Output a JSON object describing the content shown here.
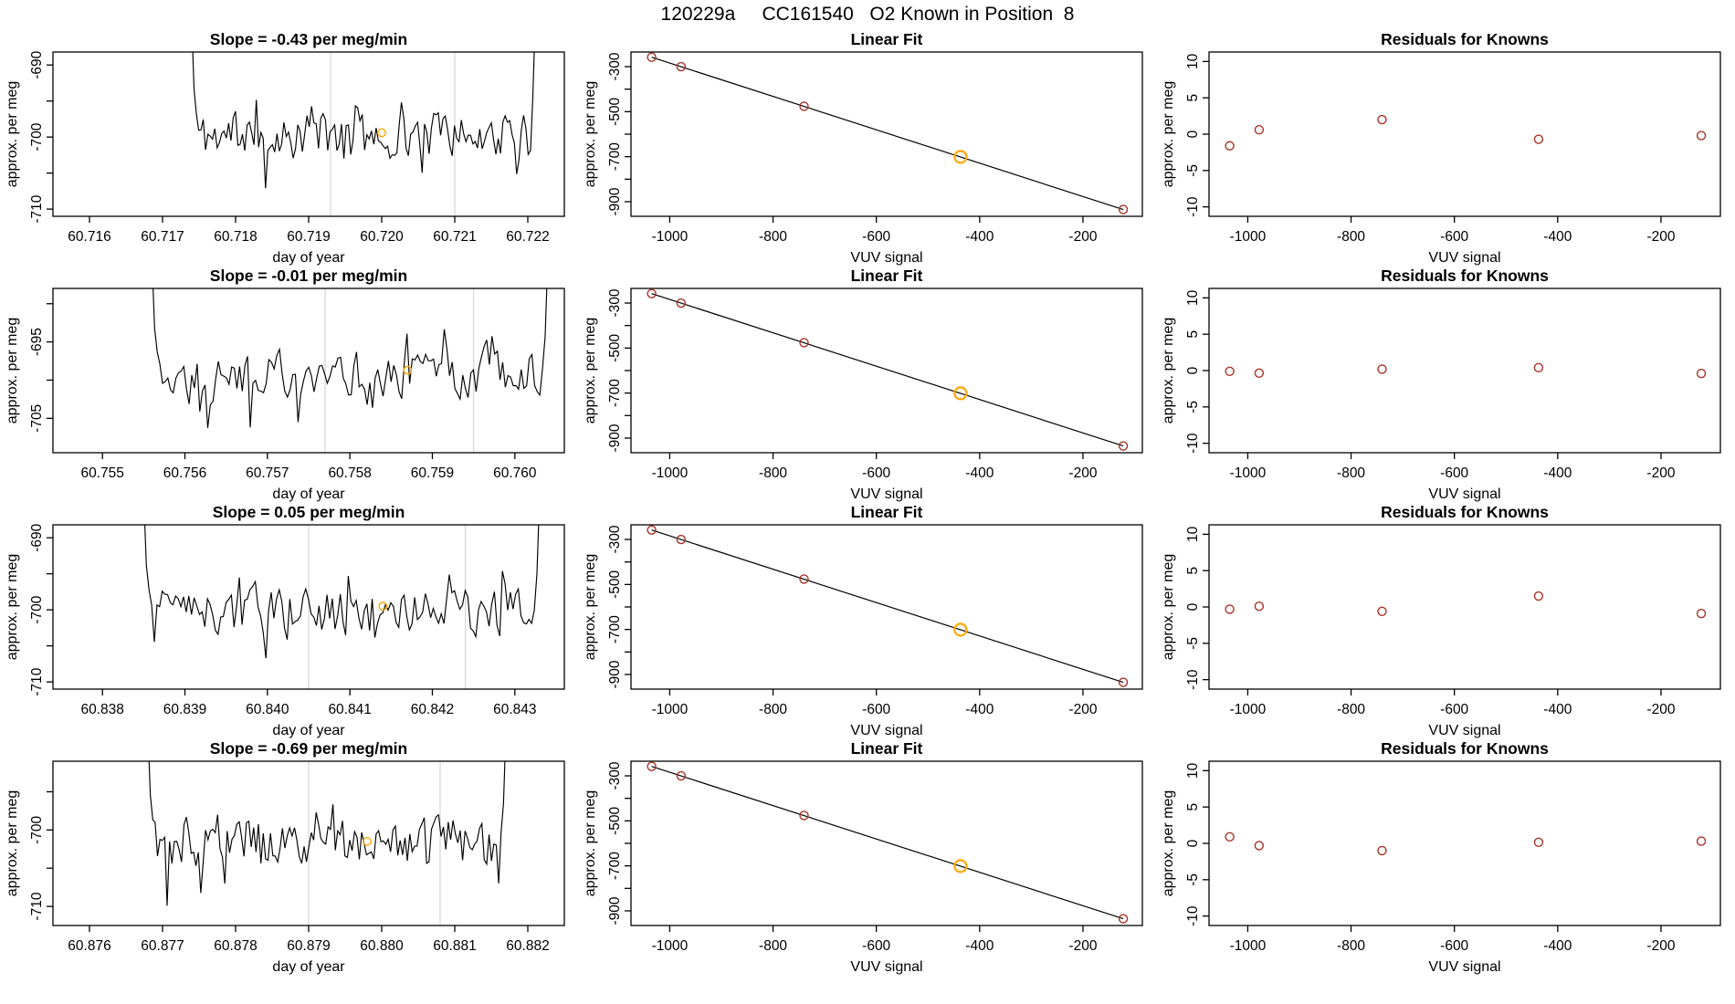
{
  "page_title": "120229a     CC161540   O2 Known in Position  8",
  "colors": {
    "series_line": "#000000",
    "axis": "#000000",
    "known_point": "#a93226",
    "highlight_point": "#ffa500",
    "guide_line": "#d8d8d8",
    "background": "#ffffff"
  },
  "chart_data": [
    {
      "type": "line",
      "panel": "timeseries",
      "title": "Slope =  -0.43  per meg/min",
      "xlabel": "day of year",
      "ylabel": "approx. per meg",
      "xlim": [
        60.7155,
        60.7225
      ],
      "ylim": [
        -711,
        -688.2
      ],
      "xticks": [
        {
          "v": 60.716,
          "l": "60.716"
        },
        {
          "v": 60.717,
          "l": "60.717"
        },
        {
          "v": 60.718,
          "l": "60.718"
        },
        {
          "v": 60.719,
          "l": "60.719"
        },
        {
          "v": 60.72,
          "l": "60.720"
        },
        {
          "v": 60.721,
          "l": "60.721"
        },
        {
          "v": 60.722,
          "l": "60.722"
        }
      ],
      "yticks": [
        {
          "v": -690,
          "l": "-690"
        },
        {
          "v": -695,
          "l": ""
        },
        {
          "v": -700,
          "l": "-700"
        },
        {
          "v": -705,
          "l": ""
        },
        {
          "v": -710,
          "l": "-710"
        }
      ],
      "vlines": [
        60.7193,
        60.721
      ],
      "highlight_point": {
        "x": 60.72,
        "y": -699.4
      },
      "noise": {
        "seed": 11,
        "n": 150,
        "mean": -699.8,
        "amp": 2.8,
        "start": 60.7174,
        "end": 60.7221
      }
    },
    {
      "type": "scatter",
      "panel": "linear_fit",
      "title": "Linear Fit",
      "xlabel": "VUV signal",
      "ylabel": "approx. per meg",
      "xlim": [
        -1075,
        -85
      ],
      "ylim": [
        -965,
        -235
      ],
      "xticks": [
        {
          "v": -1000,
          "l": "-1000"
        },
        {
          "v": -800,
          "l": "-800"
        },
        {
          "v": -600,
          "l": "-600"
        },
        {
          "v": -400,
          "l": "-400"
        },
        {
          "v": -200,
          "l": "-200"
        }
      ],
      "yticks": [
        {
          "v": -300,
          "l": "-300"
        },
        {
          "v": -400,
          "l": ""
        },
        {
          "v": -500,
          "l": "-500"
        },
        {
          "v": -600,
          "l": ""
        },
        {
          "v": -700,
          "l": "-700"
        },
        {
          "v": -800,
          "l": ""
        },
        {
          "v": -900,
          "l": "-900"
        }
      ],
      "points": [
        {
          "x": -1035,
          "y": -258
        },
        {
          "x": -978,
          "y": -300
        },
        {
          "x": -740,
          "y": -476
        },
        {
          "x": -437,
          "y": -701
        },
        {
          "x": -122,
          "y": -935
        }
      ],
      "highlight_index": 3,
      "fit_line": true
    },
    {
      "type": "scatter",
      "panel": "residuals",
      "title": "Residuals for Knowns",
      "xlabel": "VUV signal",
      "ylabel": "approx. per meg",
      "xlim": [
        -1075,
        -85
      ],
      "ylim": [
        -11.3,
        11.3
      ],
      "xticks": [
        {
          "v": -1000,
          "l": "-1000"
        },
        {
          "v": -800,
          "l": "-800"
        },
        {
          "v": -600,
          "l": "-600"
        },
        {
          "v": -400,
          "l": "-400"
        },
        {
          "v": -200,
          "l": "-200"
        }
      ],
      "yticks": [
        {
          "v": 10,
          "l": "10"
        },
        {
          "v": 5,
          "l": "5"
        },
        {
          "v": 0,
          "l": "0"
        },
        {
          "v": -5,
          "l": "-5"
        },
        {
          "v": -10,
          "l": "-10"
        }
      ],
      "points": [
        {
          "x": -1035,
          "y": -1.6
        },
        {
          "x": -978,
          "y": 0.6
        },
        {
          "x": -740,
          "y": 2.0
        },
        {
          "x": -437,
          "y": -0.7
        },
        {
          "x": -122,
          "y": -0.2
        }
      ],
      "fit_line": false
    },
    {
      "type": "line",
      "panel": "timeseries",
      "title": "Slope =  -0.01  per meg/min",
      "xlabel": "day of year",
      "ylabel": "approx. per meg",
      "xlim": [
        60.7544,
        60.7606
      ],
      "ylim": [
        -709.5,
        -688
      ],
      "xticks": [
        {
          "v": 60.755,
          "l": "60.755"
        },
        {
          "v": 60.756,
          "l": "60.756"
        },
        {
          "v": 60.757,
          "l": "60.757"
        },
        {
          "v": 60.758,
          "l": "60.758"
        },
        {
          "v": 60.759,
          "l": "60.759"
        },
        {
          "v": 60.76,
          "l": "60.760"
        }
      ],
      "yticks": [
        {
          "v": -690,
          "l": ""
        },
        {
          "v": -695,
          "l": "-695"
        },
        {
          "v": -700,
          "l": ""
        },
        {
          "v": -705,
          "l": "-705"
        }
      ],
      "vlines": [
        60.7577,
        60.7595
      ],
      "highlight_point": {
        "x": 60.7587,
        "y": -698.7
      },
      "noise": {
        "seed": 22,
        "n": 150,
        "mean": -699.2,
        "amp": 2.6,
        "start": 60.7556,
        "end": 60.7604
      }
    },
    {
      "type": "scatter",
      "panel": "linear_fit",
      "title": "Linear Fit",
      "xlabel": "VUV signal",
      "ylabel": "approx. per meg",
      "xlim": [
        -1075,
        -85
      ],
      "ylim": [
        -965,
        -235
      ],
      "xticks": [
        {
          "v": -1000,
          "l": "-1000"
        },
        {
          "v": -800,
          "l": "-800"
        },
        {
          "v": -600,
          "l": "-600"
        },
        {
          "v": -400,
          "l": "-400"
        },
        {
          "v": -200,
          "l": "-200"
        }
      ],
      "yticks": [
        {
          "v": -300,
          "l": "-300"
        },
        {
          "v": -400,
          "l": ""
        },
        {
          "v": -500,
          "l": "-500"
        },
        {
          "v": -600,
          "l": ""
        },
        {
          "v": -700,
          "l": "-700"
        },
        {
          "v": -800,
          "l": ""
        },
        {
          "v": -900,
          "l": "-900"
        }
      ],
      "points": [
        {
          "x": -1035,
          "y": -258
        },
        {
          "x": -978,
          "y": -300
        },
        {
          "x": -740,
          "y": -476
        },
        {
          "x": -437,
          "y": -701
        },
        {
          "x": -122,
          "y": -935
        }
      ],
      "highlight_index": 3,
      "fit_line": true
    },
    {
      "type": "scatter",
      "panel": "residuals",
      "title": "Residuals for Knowns",
      "xlabel": "VUV signal",
      "ylabel": "approx. per meg",
      "xlim": [
        -1075,
        -85
      ],
      "ylim": [
        -11.3,
        11.3
      ],
      "xticks": [
        {
          "v": -1000,
          "l": "-1000"
        },
        {
          "v": -800,
          "l": "-800"
        },
        {
          "v": -600,
          "l": "-600"
        },
        {
          "v": -400,
          "l": "-400"
        },
        {
          "v": -200,
          "l": "-200"
        }
      ],
      "yticks": [
        {
          "v": 10,
          "l": "10"
        },
        {
          "v": 5,
          "l": "5"
        },
        {
          "v": 0,
          "l": "0"
        },
        {
          "v": -5,
          "l": "-5"
        },
        {
          "v": -10,
          "l": "-10"
        }
      ],
      "points": [
        {
          "x": -1035,
          "y": -0.1
        },
        {
          "x": -978,
          "y": -0.35
        },
        {
          "x": -740,
          "y": 0.2
        },
        {
          "x": -437,
          "y": 0.4
        },
        {
          "x": -122,
          "y": -0.4
        }
      ],
      "fit_line": false
    },
    {
      "type": "line",
      "panel": "timeseries",
      "title": "Slope =  0.05  per meg/min",
      "xlabel": "day of year",
      "ylabel": "approx. per meg",
      "xlim": [
        60.8374,
        60.8436
      ],
      "ylim": [
        -711,
        -688.2
      ],
      "xticks": [
        {
          "v": 60.838,
          "l": "60.838"
        },
        {
          "v": 60.839,
          "l": "60.839"
        },
        {
          "v": 60.84,
          "l": "60.840"
        },
        {
          "v": 60.841,
          "l": "60.841"
        },
        {
          "v": 60.842,
          "l": "60.842"
        },
        {
          "v": 60.843,
          "l": "60.843"
        }
      ],
      "yticks": [
        {
          "v": -690,
          "l": "-690"
        },
        {
          "v": -695,
          "l": ""
        },
        {
          "v": -700,
          "l": "-700"
        },
        {
          "v": -705,
          "l": ""
        },
        {
          "v": -710,
          "l": "-710"
        }
      ],
      "vlines": [
        60.8405,
        60.8424
      ],
      "highlight_point": {
        "x": 60.8414,
        "y": -699.5
      },
      "noise": {
        "seed": 33,
        "n": 150,
        "mean": -700.3,
        "amp": 2.8,
        "start": 60.8385,
        "end": 60.8433
      }
    },
    {
      "type": "scatter",
      "panel": "linear_fit",
      "title": "Linear Fit",
      "xlabel": "VUV signal",
      "ylabel": "approx. per meg",
      "xlim": [
        -1075,
        -85
      ],
      "ylim": [
        -965,
        -235
      ],
      "xticks": [
        {
          "v": -1000,
          "l": "-1000"
        },
        {
          "v": -800,
          "l": "-800"
        },
        {
          "v": -600,
          "l": "-600"
        },
        {
          "v": -400,
          "l": "-400"
        },
        {
          "v": -200,
          "l": "-200"
        }
      ],
      "yticks": [
        {
          "v": -300,
          "l": "-300"
        },
        {
          "v": -400,
          "l": ""
        },
        {
          "v": -500,
          "l": "-500"
        },
        {
          "v": -600,
          "l": ""
        },
        {
          "v": -700,
          "l": "-700"
        },
        {
          "v": -800,
          "l": ""
        },
        {
          "v": -900,
          "l": "-900"
        }
      ],
      "points": [
        {
          "x": -1035,
          "y": -258
        },
        {
          "x": -978,
          "y": -300
        },
        {
          "x": -740,
          "y": -476
        },
        {
          "x": -437,
          "y": -701
        },
        {
          "x": -122,
          "y": -935
        }
      ],
      "highlight_index": 3,
      "fit_line": true
    },
    {
      "type": "scatter",
      "panel": "residuals",
      "title": "Residuals for Knowns",
      "xlabel": "VUV signal",
      "ylabel": "approx. per meg",
      "xlim": [
        -1075,
        -85
      ],
      "ylim": [
        -11.3,
        11.3
      ],
      "xticks": [
        {
          "v": -1000,
          "l": "-1000"
        },
        {
          "v": -800,
          "l": "-800"
        },
        {
          "v": -600,
          "l": "-600"
        },
        {
          "v": -400,
          "l": "-400"
        },
        {
          "v": -200,
          "l": "-200"
        }
      ],
      "yticks": [
        {
          "v": 10,
          "l": "10"
        },
        {
          "v": 5,
          "l": "5"
        },
        {
          "v": 0,
          "l": "0"
        },
        {
          "v": -5,
          "l": "-5"
        },
        {
          "v": -10,
          "l": "-10"
        }
      ],
      "points": [
        {
          "x": -1035,
          "y": -0.3
        },
        {
          "x": -978,
          "y": 0.1
        },
        {
          "x": -740,
          "y": -0.6
        },
        {
          "x": -437,
          "y": 1.5
        },
        {
          "x": -122,
          "y": -0.9
        }
      ],
      "fit_line": false
    },
    {
      "type": "line",
      "panel": "timeseries",
      "title": "Slope =  -0.69  per meg/min",
      "xlabel": "day of year",
      "ylabel": "approx. per meg",
      "xlim": [
        60.8755,
        60.8825
      ],
      "ylim": [
        -712.5,
        -691
      ],
      "xticks": [
        {
          "v": 60.876,
          "l": "60.876"
        },
        {
          "v": 60.877,
          "l": "60.877"
        },
        {
          "v": 60.878,
          "l": "60.878"
        },
        {
          "v": 60.879,
          "l": "60.879"
        },
        {
          "v": 60.88,
          "l": "60.880"
        },
        {
          "v": 60.881,
          "l": "60.881"
        },
        {
          "v": 60.882,
          "l": "60.882"
        }
      ],
      "yticks": [
        {
          "v": -695,
          "l": ""
        },
        {
          "v": -700,
          "l": "-700"
        },
        {
          "v": -705,
          "l": ""
        },
        {
          "v": -710,
          "l": "-710"
        }
      ],
      "vlines": [
        60.879,
        60.8808
      ],
      "highlight_point": {
        "x": 60.8798,
        "y": -701.5
      },
      "noise": {
        "seed": 44,
        "n": 150,
        "mean": -701.6,
        "amp": 2.7,
        "start": 60.8768,
        "end": 60.8817
      }
    },
    {
      "type": "scatter",
      "panel": "linear_fit",
      "title": "Linear Fit",
      "xlabel": "VUV signal",
      "ylabel": "approx. per meg",
      "xlim": [
        -1075,
        -85
      ],
      "ylim": [
        -965,
        -235
      ],
      "xticks": [
        {
          "v": -1000,
          "l": "-1000"
        },
        {
          "v": -800,
          "l": "-800"
        },
        {
          "v": -600,
          "l": "-600"
        },
        {
          "v": -400,
          "l": "-400"
        },
        {
          "v": -200,
          "l": "-200"
        }
      ],
      "yticks": [
        {
          "v": -300,
          "l": "-300"
        },
        {
          "v": -400,
          "l": ""
        },
        {
          "v": -500,
          "l": "-500"
        },
        {
          "v": -600,
          "l": ""
        },
        {
          "v": -700,
          "l": "-700"
        },
        {
          "v": -800,
          "l": ""
        },
        {
          "v": -900,
          "l": "-900"
        }
      ],
      "points": [
        {
          "x": -1035,
          "y": -258
        },
        {
          "x": -978,
          "y": -300
        },
        {
          "x": -740,
          "y": -476
        },
        {
          "x": -437,
          "y": -701
        },
        {
          "x": -122,
          "y": -935
        }
      ],
      "highlight_index": 3,
      "fit_line": true
    },
    {
      "type": "scatter",
      "panel": "residuals",
      "title": "Residuals for Knowns",
      "xlabel": "VUV signal",
      "ylabel": "approx. per meg",
      "xlim": [
        -1075,
        -85
      ],
      "ylim": [
        -11.3,
        11.3
      ],
      "xticks": [
        {
          "v": -1000,
          "l": "-1000"
        },
        {
          "v": -800,
          "l": "-800"
        },
        {
          "v": -600,
          "l": "-600"
        },
        {
          "v": -400,
          "l": "-400"
        },
        {
          "v": -200,
          "l": "-200"
        }
      ],
      "yticks": [
        {
          "v": 10,
          "l": "10"
        },
        {
          "v": 5,
          "l": "5"
        },
        {
          "v": 0,
          "l": "0"
        },
        {
          "v": -5,
          "l": "-5"
        },
        {
          "v": -10,
          "l": "-10"
        }
      ],
      "points": [
        {
          "x": -1035,
          "y": 0.9
        },
        {
          "x": -978,
          "y": -0.3
        },
        {
          "x": -740,
          "y": -1.0
        },
        {
          "x": -437,
          "y": 0.15
        },
        {
          "x": -122,
          "y": 0.3
        }
      ],
      "fit_line": false
    }
  ]
}
